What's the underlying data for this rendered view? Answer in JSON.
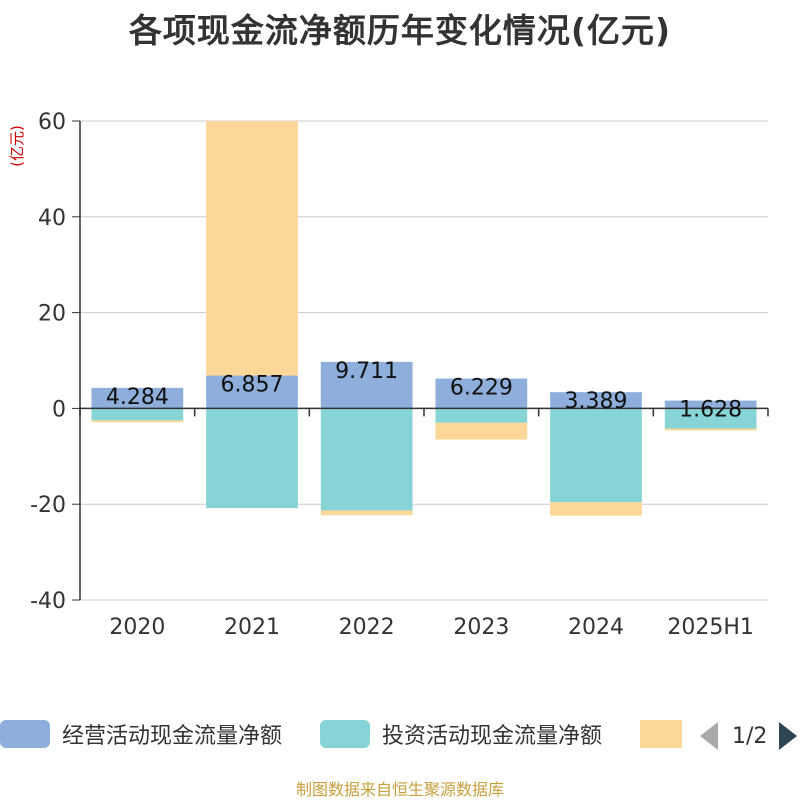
{
  "chart_data": {
    "type": "bar",
    "stacked": true,
    "title": "各项现金流净额历年变化情况(亿元)",
    "ylabel": "(亿元)",
    "categories": [
      "2020",
      "2021",
      "2022",
      "2023",
      "2024",
      "2025H1"
    ],
    "ylim": [
      -40,
      60
    ],
    "yticks": [
      -40,
      -20,
      0,
      20,
      40,
      60
    ],
    "grid": true,
    "series": [
      {
        "name": "经营活动现金流量净额",
        "color": "#8eaedb",
        "values": [
          4.284,
          6.857,
          9.711,
          6.229,
          3.389,
          1.628
        ],
        "labels": [
          "4.284",
          "6.857",
          "9.711",
          "6.229",
          "3.389",
          "1.628"
        ]
      },
      {
        "name": "投资活动现金流量净额",
        "color": "#87d4d6",
        "values": [
          -2.5,
          -20.8,
          -21.3,
          -3.0,
          -19.6,
          -4.2
        ]
      },
      {
        "name": "",
        "color": "#fdd798",
        "values": [
          -0.4,
          53.5,
          -1.0,
          -3.5,
          -2.8,
          -0.4
        ]
      }
    ]
  },
  "legend": {
    "page": "1/2"
  },
  "footer": {
    "source": "制图数据来自恒生聚源数据库"
  }
}
